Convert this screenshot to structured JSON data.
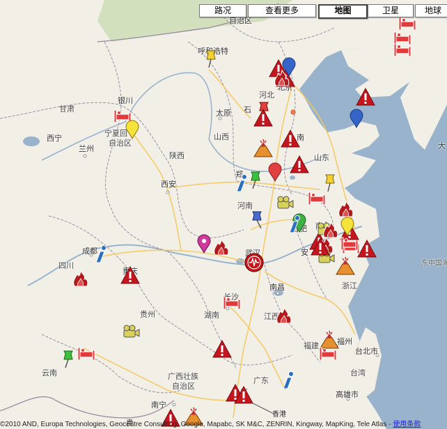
{
  "controls": {
    "traffic": "路况",
    "more": "查看更多",
    "map": "地图",
    "satellite": "卫星",
    "terrain": "地球"
  },
  "labels": [
    {
      "id": "autonomous-region-top",
      "text": "自治区"
    },
    {
      "id": "hohhot",
      "text": "呼和浩特"
    },
    {
      "id": "beijing",
      "text": "北京"
    },
    {
      "id": "hebei",
      "text": "河北"
    },
    {
      "id": "gansu",
      "text": "甘肃"
    },
    {
      "id": "yinchuan",
      "text": "银川"
    },
    {
      "id": "ningxia",
      "text": "宁夏回"
    },
    {
      "id": "ningxia2",
      "text": "自治区"
    },
    {
      "id": "taiyuan",
      "text": "太原"
    },
    {
      "id": "shijiazhuang",
      "text": "石"
    },
    {
      "id": "xining",
      "text": "西宁"
    },
    {
      "id": "lanzhou",
      "text": "兰州"
    },
    {
      "id": "shanxi",
      "text": "山西"
    },
    {
      "id": "jinan",
      "text": "南"
    },
    {
      "id": "shaanxi",
      "text": "陕西"
    },
    {
      "id": "shandong",
      "text": "山东"
    },
    {
      "id": "zhengzhou",
      "text": "郑"
    },
    {
      "id": "xian",
      "text": "西安"
    },
    {
      "id": "henan",
      "text": "河南"
    },
    {
      "id": "hefei",
      "text": "合肥"
    },
    {
      "id": "nanjing",
      "text": "南"
    },
    {
      "id": "chengdu",
      "text": "成都"
    },
    {
      "id": "sichuan",
      "text": "四川"
    },
    {
      "id": "chongqing",
      "text": "重庆"
    },
    {
      "id": "wuhan",
      "text": "武汉"
    },
    {
      "id": "anhui",
      "text": "安"
    },
    {
      "id": "east-china-sea",
      "text": "东中国海"
    },
    {
      "id": "zhejiang",
      "text": "浙江"
    },
    {
      "id": "nanchang",
      "text": "南昌"
    },
    {
      "id": "changsha",
      "text": "长沙"
    },
    {
      "id": "guizhou",
      "text": "贵州"
    },
    {
      "id": "hunan",
      "text": "湖南"
    },
    {
      "id": "jiangxi",
      "text": "江西"
    },
    {
      "id": "fujian",
      "text": "福建"
    },
    {
      "id": "fuzhou",
      "text": "福州"
    },
    {
      "id": "taipei",
      "text": "台北市"
    },
    {
      "id": "taiwan",
      "text": "台湾"
    },
    {
      "id": "kaohsiung",
      "text": "高雄市"
    },
    {
      "id": "yunnan",
      "text": "云南"
    },
    {
      "id": "guangxi",
      "text": "广西壮族"
    },
    {
      "id": "guangxi2",
      "text": "自治区"
    },
    {
      "id": "guangdong",
      "text": "广东"
    },
    {
      "id": "nanning",
      "text": "南宁"
    },
    {
      "id": "hongkong",
      "text": "香港"
    },
    {
      "id": "dalian",
      "text": "大"
    },
    {
      "id": "guangzhou",
      "text": "广"
    },
    {
      "id": "shanghai",
      "text": "上"
    },
    {
      "id": "gui",
      "text": "贵"
    }
  ],
  "copyright": {
    "text": "©2010 AND, Europa Technologies, Geocentre Consulting, Google, Mapabc, SK M&C, ZENRIN, Kingway, MapKing, Tele Atlas - ",
    "link": "使用条款"
  },
  "colors": {
    "land": "#f2efe7",
    "water": "#99b3cc",
    "grass": "#cbdcb4",
    "highway": "#f6c85c",
    "border": "#9a8fa5",
    "warning": "#c3161e",
    "lodging": "#e03a3a",
    "fire": "#b21b1b"
  },
  "markers": [
    {
      "type": "lodging",
      "id": "m1"
    },
    {
      "type": "lodging",
      "id": "m2"
    },
    {
      "type": "lodging",
      "id": "m3"
    },
    {
      "type": "pushpin-yellow",
      "id": "m4"
    },
    {
      "type": "warning",
      "id": "m5"
    },
    {
      "type": "warning",
      "id": "m6"
    },
    {
      "type": "pin-blue",
      "id": "m7"
    },
    {
      "type": "fire",
      "id": "m8"
    },
    {
      "type": "warning",
      "id": "m9"
    },
    {
      "type": "pin-blue",
      "id": "m10"
    },
    {
      "type": "lodging",
      "id": "m11"
    },
    {
      "type": "pin-yellow",
      "id": "m12"
    },
    {
      "type": "pushpin-red",
      "id": "m13"
    },
    {
      "type": "warning",
      "id": "m14"
    },
    {
      "type": "volcano",
      "id": "m15"
    },
    {
      "type": "warning",
      "id": "m16"
    },
    {
      "type": "warning",
      "id": "m17"
    },
    {
      "type": "pin-red",
      "id": "m18"
    },
    {
      "type": "pushpin-green",
      "id": "m19"
    },
    {
      "type": "info",
      "id": "m20"
    },
    {
      "type": "pushpin-yellow",
      "id": "m21"
    },
    {
      "type": "lodging",
      "id": "m22"
    },
    {
      "type": "camera",
      "id": "m23"
    },
    {
      "type": "fire",
      "id": "m24"
    },
    {
      "type": "pushpin-blue",
      "id": "m25"
    },
    {
      "type": "pin-green",
      "id": "m26"
    },
    {
      "type": "info",
      "id": "m27"
    },
    {
      "type": "pin-magenta",
      "id": "m28"
    },
    {
      "type": "fire",
      "id": "m29"
    },
    {
      "type": "circle-wave",
      "id": "m30"
    },
    {
      "type": "warning",
      "id": "m31"
    },
    {
      "type": "info",
      "id": "m32"
    },
    {
      "type": "fire",
      "id": "m33"
    },
    {
      "type": "warning",
      "id": "m34"
    },
    {
      "type": "camera",
      "id": "m35"
    },
    {
      "type": "fire",
      "id": "m36"
    },
    {
      "type": "warning",
      "id": "m37"
    },
    {
      "type": "lodging",
      "id": "m38"
    },
    {
      "type": "volcano",
      "id": "m39"
    },
    {
      "type": "fire",
      "id": "m40"
    },
    {
      "type": "warning",
      "id": "m41"
    },
    {
      "type": "lodging",
      "id": "m42"
    },
    {
      "type": "camera",
      "id": "m43"
    },
    {
      "type": "volcano",
      "id": "m44"
    },
    {
      "type": "lodging",
      "id": "m45"
    },
    {
      "type": "warning",
      "id": "m46"
    },
    {
      "type": "lodging",
      "id": "m47"
    },
    {
      "type": "pushpin-green",
      "id": "m48"
    },
    {
      "type": "warning",
      "id": "m49"
    },
    {
      "type": "warning",
      "id": "m50"
    },
    {
      "type": "info",
      "id": "m51"
    },
    {
      "type": "volcano",
      "id": "m52"
    },
    {
      "type": "warning",
      "id": "m53"
    },
    {
      "type": "fire",
      "id": "m54"
    },
    {
      "type": "pin-yellow",
      "id": "m55"
    },
    {
      "type": "camera",
      "id": "m56"
    },
    {
      "type": "lodging",
      "id": "m57"
    },
    {
      "type": "warning",
      "id": "m58"
    }
  ]
}
